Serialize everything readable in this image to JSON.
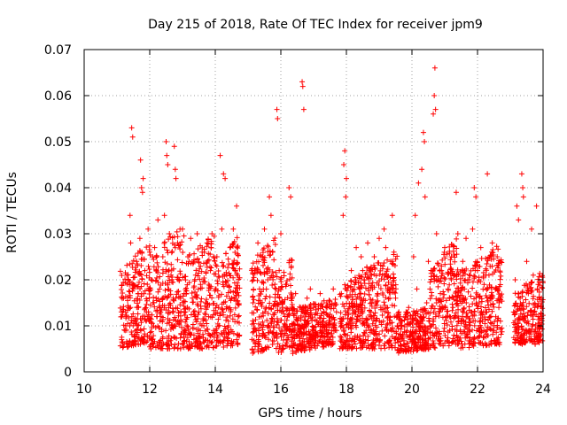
{
  "chart_data": {
    "type": "scatter",
    "title": "Day 215 of 2018, Rate Of TEC Index for receiver jpm9",
    "xlabel": "GPS time / hours",
    "ylabel": "ROTI / TECUs",
    "xlim": [
      10,
      24
    ],
    "ylim": [
      0,
      0.07
    ],
    "xticks": [
      10,
      12,
      14,
      16,
      18,
      20,
      22,
      24
    ],
    "yticks": [
      0,
      0.01,
      0.02,
      0.03,
      0.04,
      0.05,
      0.06,
      0.07
    ],
    "xtick_labels": [
      "10",
      "12",
      "14",
      "16",
      "18",
      "20",
      "22",
      "24"
    ],
    "ytick_labels": [
      "0",
      "0.01",
      "0.02",
      "0.03",
      "0.04",
      "0.05",
      "0.06",
      "0.07"
    ],
    "grid": true,
    "marker": "+",
    "color": "#ff0000",
    "series": [
      {
        "name": "ROTI jpm9",
        "points": [
          [
            11.15,
            0.012
          ],
          [
            11.2,
            0.016
          ],
          [
            11.25,
            0.009
          ],
          [
            11.3,
            0.021
          ],
          [
            11.35,
            0.014
          ],
          [
            11.4,
            0.034
          ],
          [
            11.42,
            0.028
          ],
          [
            11.45,
            0.053
          ],
          [
            11.48,
            0.051
          ],
          [
            11.5,
            0.019
          ],
          [
            11.55,
            0.011
          ],
          [
            11.6,
            0.024
          ],
          [
            11.65,
            0.017
          ],
          [
            11.7,
            0.029
          ],
          [
            11.72,
            0.046
          ],
          [
            11.75,
            0.04
          ],
          [
            11.78,
            0.039
          ],
          [
            11.8,
            0.042
          ],
          [
            11.85,
            0.022
          ],
          [
            11.9,
            0.013
          ],
          [
            11.95,
            0.031
          ],
          [
            12.0,
            0.026
          ],
          [
            12.05,
            0.02
          ],
          [
            12.1,
            0.015
          ],
          [
            12.15,
            0.027
          ],
          [
            12.2,
            0.022
          ],
          [
            12.25,
            0.033
          ],
          [
            12.3,
            0.018
          ],
          [
            12.35,
            0.012
          ],
          [
            12.4,
            0.025
          ],
          [
            12.45,
            0.034
          ],
          [
            12.5,
            0.05
          ],
          [
            12.52,
            0.047
          ],
          [
            12.55,
            0.045
          ],
          [
            12.6,
            0.03
          ],
          [
            12.65,
            0.021
          ],
          [
            12.7,
            0.013
          ],
          [
            12.75,
            0.049
          ],
          [
            12.78,
            0.044
          ],
          [
            12.8,
            0.042
          ],
          [
            12.85,
            0.028
          ],
          [
            12.9,
            0.02
          ],
          [
            12.95,
            0.011
          ],
          [
            13.0,
            0.031
          ],
          [
            13.05,
            0.017
          ],
          [
            13.1,
            0.009
          ],
          [
            13.15,
            0.014
          ],
          [
            13.2,
            0.024
          ],
          [
            13.25,
            0.029
          ],
          [
            13.3,
            0.016
          ],
          [
            13.35,
            0.008
          ],
          [
            13.4,
            0.021
          ],
          [
            13.45,
            0.03
          ],
          [
            13.5,
            0.013
          ],
          [
            13.55,
            0.019
          ],
          [
            13.6,
            0.026
          ],
          [
            13.65,
            0.01
          ],
          [
            13.7,
            0.015
          ],
          [
            13.75,
            0.028
          ],
          [
            13.8,
            0.012
          ],
          [
            13.85,
            0.022
          ],
          [
            13.9,
            0.03
          ],
          [
            13.95,
            0.009
          ],
          [
            14.0,
            0.018
          ],
          [
            14.05,
            0.025
          ],
          [
            14.1,
            0.014
          ],
          [
            14.15,
            0.047
          ],
          [
            14.2,
            0.031
          ],
          [
            14.25,
            0.043
          ],
          [
            14.3,
            0.042
          ],
          [
            14.35,
            0.021
          ],
          [
            14.4,
            0.011
          ],
          [
            14.45,
            0.027
          ],
          [
            14.5,
            0.016
          ],
          [
            14.55,
            0.031
          ],
          [
            14.6,
            0.022
          ],
          [
            14.65,
            0.036
          ],
          [
            14.7,
            0.012
          ],
          [
            15.15,
            0.015
          ],
          [
            15.2,
            0.022
          ],
          [
            15.25,
            0.009
          ],
          [
            15.3,
            0.028
          ],
          [
            15.35,
            0.018
          ],
          [
            15.4,
            0.012
          ],
          [
            15.45,
            0.025
          ],
          [
            15.5,
            0.031
          ],
          [
            15.55,
            0.014
          ],
          [
            15.6,
            0.02
          ],
          [
            15.65,
            0.038
          ],
          [
            15.7,
            0.034
          ],
          [
            15.75,
            0.026
          ],
          [
            15.8,
            0.011
          ],
          [
            15.85,
            0.018
          ],
          [
            15.88,
            0.057
          ],
          [
            15.9,
            0.055
          ],
          [
            15.95,
            0.022
          ],
          [
            16.0,
            0.03
          ],
          [
            16.05,
            0.015
          ],
          [
            16.1,
            0.008
          ],
          [
            16.15,
            0.019
          ],
          [
            16.2,
            0.012
          ],
          [
            16.25,
            0.04
          ],
          [
            16.3,
            0.038
          ],
          [
            16.35,
            0.014
          ],
          [
            16.4,
            0.009
          ],
          [
            16.45,
            0.017
          ],
          [
            16.5,
            0.011
          ],
          [
            16.6,
            0.014
          ],
          [
            16.65,
            0.063
          ],
          [
            16.67,
            0.062
          ],
          [
            16.7,
            0.057
          ],
          [
            16.75,
            0.01
          ],
          [
            16.8,
            0.016
          ],
          [
            16.85,
            0.012
          ],
          [
            16.9,
            0.018
          ],
          [
            16.95,
            0.008
          ],
          [
            17.0,
            0.014
          ],
          [
            17.1,
            0.011
          ],
          [
            17.2,
            0.017
          ],
          [
            17.3,
            0.01
          ],
          [
            17.4,
            0.015
          ],
          [
            17.5,
            0.012
          ],
          [
            17.6,
            0.018
          ],
          [
            17.7,
            0.009
          ],
          [
            17.85,
            0.01
          ],
          [
            17.9,
            0.034
          ],
          [
            17.92,
            0.045
          ],
          [
            17.95,
            0.048
          ],
          [
            17.98,
            0.038
          ],
          [
            18.0,
            0.042
          ],
          [
            18.05,
            0.016
          ],
          [
            18.1,
            0.011
          ],
          [
            18.15,
            0.022
          ],
          [
            18.2,
            0.014
          ],
          [
            18.25,
            0.019
          ],
          [
            18.3,
            0.027
          ],
          [
            18.35,
            0.012
          ],
          [
            18.4,
            0.018
          ],
          [
            18.45,
            0.025
          ],
          [
            18.5,
            0.015
          ],
          [
            18.55,
            0.02
          ],
          [
            18.6,
            0.009
          ],
          [
            18.65,
            0.028
          ],
          [
            18.7,
            0.022
          ],
          [
            18.75,
            0.013
          ],
          [
            18.8,
            0.018
          ],
          [
            18.85,
            0.025
          ],
          [
            18.9,
            0.011
          ],
          [
            18.95,
            0.017
          ],
          [
            19.0,
            0.029
          ],
          [
            19.05,
            0.014
          ],
          [
            19.1,
            0.021
          ],
          [
            19.15,
            0.031
          ],
          [
            19.2,
            0.027
          ],
          [
            19.25,
            0.018
          ],
          [
            19.3,
            0.012
          ],
          [
            19.35,
            0.024
          ],
          [
            19.4,
            0.034
          ],
          [
            19.45,
            0.026
          ],
          [
            19.5,
            0.016
          ],
          [
            19.55,
            0.01
          ],
          [
            19.6,
            0.013
          ],
          [
            19.65,
            0.008
          ],
          [
            19.7,
            0.011
          ],
          [
            19.75,
            0.006
          ],
          [
            19.8,
            0.012
          ],
          [
            19.85,
            0.009
          ],
          [
            19.9,
            0.014
          ],
          [
            19.95,
            0.007
          ],
          [
            20.0,
            0.011
          ],
          [
            20.05,
            0.025
          ],
          [
            20.1,
            0.034
          ],
          [
            20.15,
            0.018
          ],
          [
            20.2,
            0.041
          ],
          [
            20.25,
            0.012
          ],
          [
            20.3,
            0.044
          ],
          [
            20.35,
            0.052
          ],
          [
            20.38,
            0.05
          ],
          [
            20.4,
            0.038
          ],
          [
            20.45,
            0.015
          ],
          [
            20.5,
            0.024
          ],
          [
            20.55,
            0.018
          ],
          [
            20.6,
            0.01
          ],
          [
            20.65,
            0.056
          ],
          [
            20.68,
            0.06
          ],
          [
            20.7,
            0.066
          ],
          [
            20.72,
            0.057
          ],
          [
            20.75,
            0.03
          ],
          [
            20.8,
            0.02
          ],
          [
            20.85,
            0.013
          ],
          [
            20.9,
            0.022
          ],
          [
            20.95,
            0.016
          ],
          [
            21.0,
            0.027
          ],
          [
            21.05,
            0.012
          ],
          [
            21.1,
            0.018
          ],
          [
            21.15,
            0.009
          ],
          [
            21.2,
            0.025
          ],
          [
            21.25,
            0.014
          ],
          [
            21.3,
            0.021
          ],
          [
            21.35,
            0.039
          ],
          [
            21.4,
            0.03
          ],
          [
            21.45,
            0.016
          ],
          [
            21.5,
            0.011
          ],
          [
            21.55,
            0.024
          ],
          [
            21.6,
            0.018
          ],
          [
            21.65,
            0.029
          ],
          [
            21.7,
            0.012
          ],
          [
            21.75,
            0.02
          ],
          [
            21.8,
            0.013
          ],
          [
            21.85,
            0.031
          ],
          [
            21.9,
            0.04
          ],
          [
            21.95,
            0.038
          ],
          [
            22.0,
            0.022
          ],
          [
            22.05,
            0.015
          ],
          [
            22.1,
            0.027
          ],
          [
            22.15,
            0.011
          ],
          [
            22.2,
            0.019
          ],
          [
            22.25,
            0.013
          ],
          [
            22.3,
            0.043
          ],
          [
            22.35,
            0.021
          ],
          [
            22.4,
            0.016
          ],
          [
            22.45,
            0.028
          ],
          [
            22.5,
            0.009
          ],
          [
            22.55,
            0.018
          ],
          [
            22.6,
            0.025
          ],
          [
            22.65,
            0.014
          ],
          [
            22.7,
            0.011
          ],
          [
            23.1,
            0.013
          ],
          [
            23.15,
            0.02
          ],
          [
            23.2,
            0.036
          ],
          [
            23.25,
            0.033
          ],
          [
            23.3,
            0.016
          ],
          [
            23.35,
            0.043
          ],
          [
            23.38,
            0.04
          ],
          [
            23.4,
            0.038
          ],
          [
            23.45,
            0.011
          ],
          [
            23.5,
            0.024
          ],
          [
            23.55,
            0.017
          ],
          [
            23.6,
            0.009
          ],
          [
            23.65,
            0.031
          ],
          [
            23.7,
            0.021
          ],
          [
            23.75,
            0.014
          ],
          [
            23.8,
            0.036
          ],
          [
            23.85,
            0.019
          ],
          [
            23.9,
            0.012
          ],
          [
            23.95,
            0.016
          ]
        ]
      }
    ],
    "density_segments": [
      [
        11.1,
        12.0,
        0.005,
        0.022,
        0.0065,
        0.029
      ],
      [
        12.0,
        13.05,
        0.005,
        0.026,
        0.005,
        0.032
      ],
      [
        13.05,
        14.0,
        0.005,
        0.025,
        0.005,
        0.03
      ],
      [
        14.0,
        14.75,
        0.005,
        0.024,
        0.006,
        0.03
      ],
      [
        15.1,
        15.9,
        0.004,
        0.024,
        0.005,
        0.03
      ],
      [
        15.9,
        16.35,
        0.004,
        0.02,
        0.005,
        0.026
      ],
      [
        16.35,
        17.7,
        0.004,
        0.014,
        0.006,
        0.016
      ],
      [
        17.8,
        18.4,
        0.005,
        0.018,
        0.005,
        0.022
      ],
      [
        18.4,
        19.55,
        0.005,
        0.022,
        0.005,
        0.026
      ],
      [
        19.55,
        20.55,
        0.004,
        0.013,
        0.005,
        0.014
      ],
      [
        20.55,
        21.4,
        0.005,
        0.022,
        0.006,
        0.03
      ],
      [
        21.4,
        22.75,
        0.005,
        0.022,
        0.006,
        0.028
      ],
      [
        23.1,
        24.0,
        0.006,
        0.017,
        0.006,
        0.022
      ]
    ]
  }
}
